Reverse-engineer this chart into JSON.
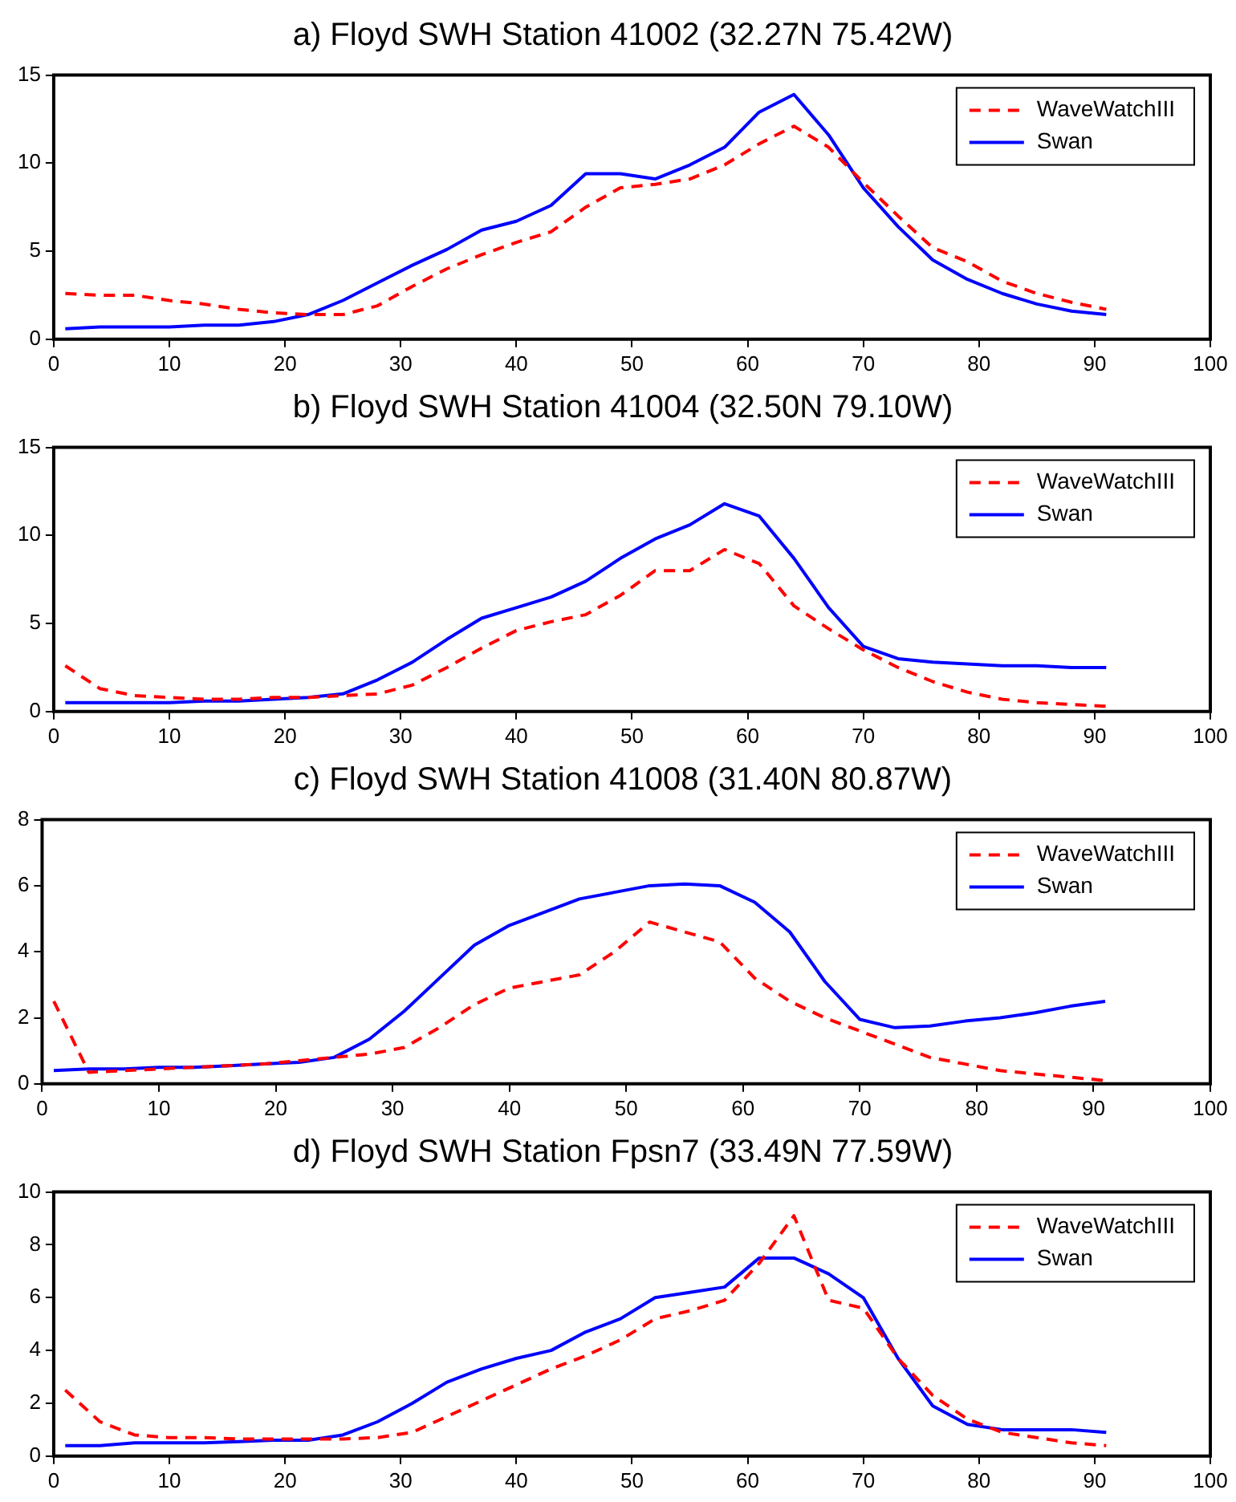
{
  "chart_data": [
    {
      "type": "line",
      "title": "a)  Floyd SWH Station 41002 (32.27N 75.42W)",
      "x": [
        1,
        4,
        7,
        10,
        13,
        16,
        19,
        22,
        25,
        28,
        31,
        34,
        37,
        40,
        43,
        46,
        49,
        52,
        55,
        58,
        61,
        64,
        67,
        70,
        73,
        76,
        79,
        82,
        85,
        88,
        91
      ],
      "xlim": [
        0,
        100
      ],
      "xticks": [
        0,
        10,
        20,
        30,
        40,
        50,
        60,
        70,
        80,
        90,
        100
      ],
      "ylim": [
        0,
        15
      ],
      "yticks": [
        0,
        5,
        10,
        15
      ],
      "legend": "top right",
      "series": [
        {
          "name": "WaveWatchIII",
          "color": "#ff0000",
          "line_style": "dashed",
          "values": [
            2.6,
            2.5,
            2.5,
            2.2,
            2.0,
            1.7,
            1.5,
            1.4,
            1.4,
            1.9,
            3.0,
            4.0,
            4.8,
            5.5,
            6.1,
            7.5,
            8.6,
            8.8,
            9.1,
            9.9,
            11.1,
            12.1,
            10.9,
            8.9,
            7.0,
            5.2,
            4.4,
            3.3,
            2.6,
            2.1,
            1.7
          ]
        },
        {
          "name": "Swan",
          "color": "#0000ff",
          "line_style": "solid",
          "values": [
            0.6,
            0.7,
            0.7,
            0.7,
            0.8,
            0.8,
            1.0,
            1.4,
            2.2,
            3.2,
            4.2,
            5.1,
            6.2,
            6.7,
            7.6,
            9.4,
            9.4,
            9.1,
            9.9,
            10.9,
            12.9,
            13.9,
            11.6,
            8.6,
            6.4,
            4.5,
            3.4,
            2.6,
            2.0,
            1.6,
            1.4
          ]
        }
      ]
    },
    {
      "type": "line",
      "title": "b)  Floyd SWH Station 41004 (32.50N 79.10W)",
      "x": [
        1,
        4,
        7,
        10,
        13,
        16,
        19,
        22,
        25,
        28,
        31,
        34,
        37,
        40,
        43,
        46,
        49,
        52,
        55,
        58,
        61,
        64,
        67,
        70,
        73,
        76,
        79,
        82,
        85,
        88,
        91
      ],
      "xlim": [
        0,
        100
      ],
      "xticks": [
        0,
        10,
        20,
        30,
        40,
        50,
        60,
        70,
        80,
        90,
        100
      ],
      "ylim": [
        0,
        15
      ],
      "yticks": [
        0,
        5,
        10,
        15
      ],
      "legend": "top right",
      "series": [
        {
          "name": "WaveWatchIII",
          "color": "#ff0000",
          "line_style": "dashed",
          "values": [
            2.6,
            1.3,
            0.9,
            0.8,
            0.7,
            0.7,
            0.8,
            0.8,
            0.9,
            1.0,
            1.5,
            2.5,
            3.6,
            4.6,
            5.1,
            5.5,
            6.6,
            8.0,
            8.0,
            9.2,
            8.4,
            6.0,
            4.7,
            3.5,
            2.5,
            1.7,
            1.1,
            0.7,
            0.5,
            0.4,
            0.3
          ]
        },
        {
          "name": "Swan",
          "color": "#0000ff",
          "line_style": "solid",
          "values": [
            0.5,
            0.5,
            0.5,
            0.5,
            0.6,
            0.6,
            0.7,
            0.8,
            1.0,
            1.8,
            2.8,
            4.1,
            5.3,
            5.9,
            6.5,
            7.4,
            8.7,
            9.8,
            10.6,
            11.8,
            11.1,
            8.7,
            5.9,
            3.7,
            3.0,
            2.8,
            2.7,
            2.6,
            2.6,
            2.5,
            2.5
          ]
        }
      ]
    },
    {
      "type": "line",
      "title": "c)  Floyd SWH Station 41008 (31.40N 80.87W)",
      "x": [
        1,
        4,
        7,
        10,
        13,
        16,
        19,
        22,
        25,
        28,
        31,
        34,
        37,
        40,
        43,
        46,
        49,
        52,
        55,
        58,
        61,
        64,
        67,
        70,
        73,
        76,
        79,
        82,
        85,
        88,
        91
      ],
      "xlim": [
        0,
        100
      ],
      "xticks": [
        0,
        10,
        20,
        30,
        40,
        50,
        60,
        70,
        80,
        90,
        100
      ],
      "ylim": [
        0,
        8
      ],
      "yticks": [
        0,
        2,
        4,
        6,
        8
      ],
      "legend": "top right",
      "series": [
        {
          "name": "WaveWatchIII",
          "color": "#ff0000",
          "line_style": "dashed",
          "values": [
            2.5,
            0.35,
            0.4,
            0.45,
            0.5,
            0.55,
            0.6,
            0.7,
            0.8,
            0.9,
            1.1,
            1.7,
            2.4,
            2.9,
            3.1,
            3.3,
            4.0,
            4.9,
            4.6,
            4.3,
            3.2,
            2.5,
            2.0,
            1.6,
            1.2,
            0.8,
            0.6,
            0.4,
            0.3,
            0.2,
            0.1
          ]
        },
        {
          "name": "Swan",
          "color": "#0000ff",
          "line_style": "solid",
          "values": [
            0.4,
            0.45,
            0.45,
            0.5,
            0.5,
            0.55,
            0.6,
            0.65,
            0.8,
            1.35,
            2.2,
            3.2,
            4.2,
            4.8,
            5.2,
            5.6,
            5.8,
            6.0,
            6.05,
            6.0,
            5.5,
            4.6,
            3.1,
            1.95,
            1.7,
            1.75,
            1.9,
            2.0,
            2.15,
            2.35,
            2.5
          ]
        }
      ]
    },
    {
      "type": "line",
      "title": "d)  Floyd SWH Station Fpsn7 (33.49N 77.59W)",
      "x": [
        1,
        4,
        7,
        10,
        13,
        16,
        19,
        22,
        25,
        28,
        31,
        34,
        37,
        40,
        43,
        46,
        49,
        52,
        55,
        58,
        61,
        64,
        67,
        70,
        73,
        76,
        79,
        82,
        85,
        88,
        91
      ],
      "xlim": [
        0,
        100
      ],
      "xticks": [
        0,
        10,
        20,
        30,
        40,
        50,
        60,
        70,
        80,
        90,
        100
      ],
      "ylim": [
        0,
        10
      ],
      "yticks": [
        0,
        2,
        4,
        6,
        8,
        10
      ],
      "legend": "top right",
      "series": [
        {
          "name": "WaveWatchIII",
          "color": "#ff0000",
          "line_style": "dashed",
          "values": [
            2.5,
            1.3,
            0.8,
            0.7,
            0.7,
            0.65,
            0.65,
            0.65,
            0.65,
            0.7,
            0.9,
            1.5,
            2.1,
            2.7,
            3.3,
            3.8,
            4.4,
            5.2,
            5.5,
            5.9,
            7.3,
            9.1,
            5.9,
            5.6,
            3.7,
            2.3,
            1.4,
            0.9,
            0.7,
            0.5,
            0.4
          ]
        },
        {
          "name": "Swan",
          "color": "#0000ff",
          "line_style": "solid",
          "values": [
            0.4,
            0.4,
            0.5,
            0.5,
            0.5,
            0.55,
            0.6,
            0.6,
            0.8,
            1.3,
            2.0,
            2.8,
            3.3,
            3.7,
            4.0,
            4.7,
            5.2,
            6.0,
            6.2,
            6.4,
            7.5,
            7.5,
            6.9,
            6.0,
            3.7,
            1.9,
            1.2,
            1.0,
            1.0,
            1.0,
            0.9
          ]
        }
      ]
    }
  ]
}
